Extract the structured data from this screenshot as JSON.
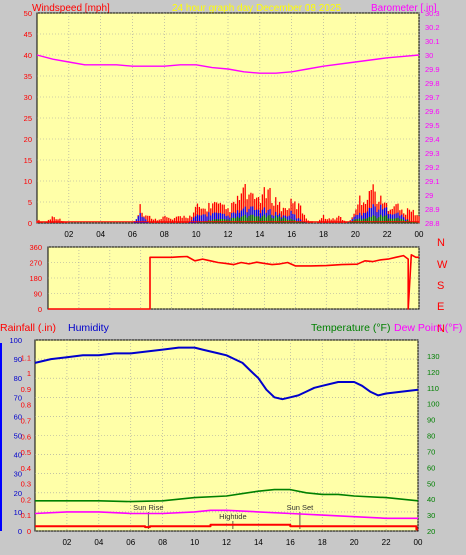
{
  "colors": {
    "background": "#c8c8c8",
    "plot_bg": "#ffffa8",
    "grid": "#a0a0a0",
    "wind_red": "#ff0000",
    "gust_blue": "#0000ff",
    "avg_green": "#008000",
    "baro_magenta": "#ff00ff",
    "title_yellow": "#ffff00",
    "humidity_blue": "#0000cc",
    "temp_green": "#008000",
    "dew_magenta": "#ff00ff",
    "rain_red": "#ff0000",
    "dir_red": "#ff0000",
    "wind_left_red": "#ff0000"
  },
  "chart_data": [
    {
      "type": "bar",
      "title": "24 hour graph day   December 08 2025",
      "ylabel_left": "Windspeed [mph]",
      "ylabel_right": "Barometer [.in]",
      "x_ticks": [
        "02",
        "04",
        "06",
        "08",
        "10",
        "12",
        "14",
        "16",
        "18",
        "20",
        "22",
        "00"
      ],
      "x_range": [
        0,
        24
      ],
      "ylim": [
        0,
        50
      ],
      "y_ticks_left": [
        "0",
        "5",
        "10",
        "15",
        "20",
        "25",
        "30",
        "35",
        "40",
        "45",
        "50"
      ],
      "ylim_right": [
        28.8,
        30.3
      ],
      "y_ticks_right": [
        "28.8",
        "28.9",
        "29",
        "29.1",
        "29.2",
        "29.3",
        "29.4",
        "29.5",
        "29.6",
        "29.7",
        "29.8",
        "29.9",
        "30",
        "30.1",
        "30.2",
        "30.3"
      ],
      "grid": true,
      "series": [
        {
          "name": "",
          "kind": "barometer",
          "color": "#ff00ff",
          "x": [
            0,
            1,
            2,
            3,
            4,
            5,
            6,
            7,
            8,
            9,
            10,
            11,
            12,
            13,
            14,
            15,
            16,
            17,
            18,
            20,
            22,
            23,
            24
          ],
          "values": [
            30.0,
            29.97,
            29.95,
            29.93,
            29.93,
            29.93,
            29.92,
            29.92,
            29.92,
            29.93,
            29.93,
            29.91,
            29.9,
            29.88,
            29.87,
            29.87,
            29.88,
            29.9,
            29.92,
            29.95,
            29.98,
            29.99,
            30.0
          ]
        },
        {
          "name": "",
          "kind": "wind_envelope",
          "color": "#ff0000",
          "x": [
            0.0,
            0.5,
            1.0,
            2.0,
            3.0,
            4.0,
            5.0,
            6.0,
            6.3,
            6.5,
            6.7,
            7.0,
            7.5,
            8.0,
            8.5,
            9.0,
            9.5,
            9.8,
            10.0,
            10.5,
            11.0,
            11.5,
            12.0,
            12.5,
            13.0,
            13.5,
            14.0,
            14.5,
            15.0,
            15.5,
            16.0,
            16.5,
            17.0,
            17.5,
            18.0,
            18.5,
            19.0,
            19.5,
            20.0,
            20.3,
            20.6,
            21.0,
            21.5,
            22.0,
            22.5,
            23.0,
            23.5,
            24.0
          ],
          "values": [
            1,
            0,
            2,
            0,
            0,
            0,
            0,
            0,
            1,
            6,
            2,
            2,
            1,
            2,
            1,
            2,
            2,
            2,
            5,
            4,
            6,
            5,
            4,
            6,
            10,
            7,
            8,
            9,
            7,
            4,
            6,
            5,
            1,
            0,
            2,
            1,
            2,
            0,
            3,
            8,
            7,
            11,
            7,
            5,
            6,
            3,
            4,
            2
          ]
        },
        {
          "name": "",
          "kind": "gust_envelope",
          "color": "#0000ff",
          "x": [
            0,
            6,
            6.5,
            7,
            9.5,
            10,
            11,
            12,
            13,
            14,
            15,
            15.5,
            16,
            16.5,
            17,
            19.5,
            20,
            21,
            22,
            23,
            23.5,
            24
          ],
          "values": [
            0,
            0,
            3,
            0,
            0,
            2,
            3,
            2,
            4,
            4,
            3,
            2,
            3,
            1,
            0,
            0,
            2,
            5,
            4,
            2,
            0,
            0
          ]
        },
        {
          "name": "",
          "kind": "avg_envelope",
          "color": "#008000",
          "x": [
            0,
            10,
            11,
            12,
            13,
            14,
            15,
            16,
            17,
            19.5,
            20,
            21,
            22,
            23,
            24
          ],
          "values": [
            0,
            0,
            1,
            1,
            2,
            2,
            2,
            1,
            0,
            0,
            1,
            2,
            2,
            1,
            0
          ]
        }
      ]
    },
    {
      "type": "line",
      "title": "",
      "x_ticks": [],
      "x_range": [
        0,
        24
      ],
      "ylim": [
        0,
        360
      ],
      "y_ticks_left": [
        "0",
        "90",
        "180",
        "270",
        "360"
      ],
      "compass_labels": [
        "N",
        "W",
        "S",
        "E",
        "N"
      ],
      "grid": true,
      "series": [
        {
          "name": "",
          "kind": "wind_direction",
          "color": "#ff0000",
          "x": [
            0,
            6.6,
            6.6,
            7.0,
            8.0,
            8.5,
            9.0,
            9.5,
            10.0,
            10.5,
            11.0,
            11.5,
            12.0,
            12.5,
            13.0,
            13.5,
            14.0,
            14.5,
            15.0,
            15.5,
            16.0,
            16.5,
            17.0,
            18.0,
            19.0,
            20.0,
            20.5,
            21.0,
            21.5,
            22.0,
            22.5,
            23.0,
            23.3,
            23.3,
            23.5,
            23.8,
            24
          ],
          "values": [
            0,
            0,
            300,
            300,
            300,
            303,
            305,
            280,
            290,
            280,
            270,
            265,
            258,
            270,
            262,
            272,
            265,
            258,
            262,
            270,
            250,
            250,
            250,
            252,
            258,
            260,
            280,
            275,
            285,
            290,
            300,
            310,
            290,
            0,
            315,
            300,
            300
          ]
        }
      ]
    },
    {
      "type": "line",
      "title": "",
      "ylabel_left_a": "Rainfall (.in)",
      "ylabel_left_b": "Humidity",
      "ylabel_right_a": "Temperature (°F)",
      "ylabel_right_b": "Dew Point (°F)",
      "x_ticks": [
        "02",
        "04",
        "06",
        "08",
        "10",
        "12",
        "14",
        "16",
        "18",
        "20",
        "22",
        "00"
      ],
      "x_range": [
        0,
        24
      ],
      "ylim": [
        0,
        100
      ],
      "y_ticks_humidity": [
        "0",
        "10",
        "20",
        "30",
        "40",
        "50",
        "60",
        "70",
        "80",
        "90",
        "100"
      ],
      "y_ticks_rain": [
        "0",
        "0.1",
        "0.2",
        "0.3",
        "0.4",
        "0.5",
        "0.6",
        "0.7",
        "0.8",
        "0.9",
        "1",
        "1.1"
      ],
      "ylim_right": [
        20,
        140
      ],
      "y_ticks_right": [
        "20",
        "30",
        "40",
        "50",
        "60",
        "70",
        "80",
        "90",
        "100",
        "110",
        "120",
        "130"
      ],
      "grid": true,
      "annotations": [
        {
          "label": "Sun Rise",
          "x": 7.1
        },
        {
          "label": "Hightide",
          "x": 12.4
        },
        {
          "label": "Sun Set",
          "x": 16.6
        }
      ],
      "series": [
        {
          "name": "Humidity",
          "kind": "humidity",
          "color": "#0000cc",
          "x": [
            0,
            0.5,
            1,
            2,
            3,
            4,
            5,
            6,
            7,
            8,
            9,
            10,
            10.5,
            11,
            11.5,
            12,
            12.5,
            13,
            13.5,
            14,
            14.5,
            15,
            15.5,
            16,
            16.5,
            17,
            17.5,
            18,
            19,
            20,
            20.5,
            21,
            21.5,
            22,
            23,
            24
          ],
          "values": [
            88,
            89,
            90,
            91,
            92,
            92,
            93,
            93,
            94,
            95,
            96,
            96,
            95,
            94,
            93,
            92,
            90,
            88,
            84,
            80,
            74,
            70,
            69,
            70,
            71,
            73,
            75,
            76,
            78,
            78,
            76,
            73,
            71,
            72,
            73,
            74
          ]
        },
        {
          "name": "Temperature (°F)",
          "kind": "temperature",
          "color": "#008000",
          "x": [
            0,
            2,
            4,
            6,
            8,
            10,
            12,
            13,
            14,
            15,
            16,
            17,
            18,
            19,
            20,
            22,
            23,
            24
          ],
          "values": [
            39,
            39,
            39,
            38.5,
            39,
            41,
            42,
            43.5,
            45,
            46,
            46,
            44,
            43,
            43,
            42,
            41,
            40,
            39
          ]
        },
        {
          "name": "Dew Point (°F)",
          "kind": "dew_point",
          "color": "#ff00ff",
          "x": [
            0,
            2,
            4,
            6,
            8,
            10,
            11,
            12,
            14,
            16,
            18,
            20,
            22,
            24
          ],
          "values": [
            31,
            32,
            32,
            31,
            31,
            32,
            33,
            33,
            32,
            31,
            30,
            29,
            28,
            28
          ]
        },
        {
          "name": "Rainfall (.in)",
          "kind": "rain",
          "color": "#ff0000",
          "x": [
            0,
            6.9,
            6.9,
            7.1,
            7.2,
            7.2,
            11,
            11,
            16,
            16,
            23.9,
            23.9,
            24
          ],
          "values": [
            0.03,
            0.03,
            0.025,
            0.025,
            0.025,
            0.03,
            0.03,
            0.04,
            0.04,
            0.03,
            0.03,
            0.01,
            0.01
          ]
        }
      ]
    }
  ]
}
